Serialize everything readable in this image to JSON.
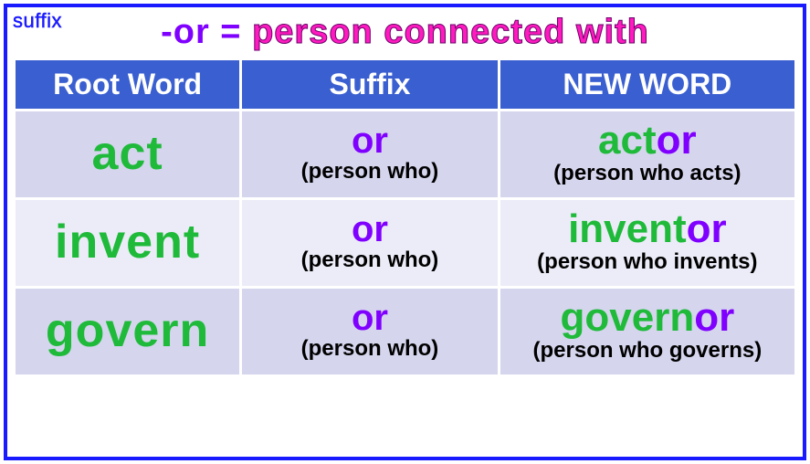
{
  "corner_label": "suffix",
  "title": {
    "prefix": "-or = ",
    "main": "person connected with"
  },
  "columns": [
    "Root Word",
    "Suffix",
    "NEW WORD"
  ],
  "rows": [
    {
      "root": "act",
      "suffix": "or",
      "suffix_meaning": "(person who)",
      "new_root": "act",
      "new_suffix": "or",
      "definition": "(person who acts)"
    },
    {
      "root": "invent",
      "suffix": "or",
      "suffix_meaning": "(person who)",
      "new_root": "invent",
      "new_suffix": "or",
      "definition": "(person who invents)"
    },
    {
      "root": "govern",
      "suffix": "or",
      "suffix_meaning": "(person who)",
      "new_root": "govern",
      "new_suffix": "or",
      "definition": "(person who governs)"
    }
  ],
  "colors": {
    "frame_border": "#1a1aff",
    "header_bg": "#3a5fd0",
    "row_odd": "#d5d5ee",
    "row_even": "#ececf8",
    "root_color": "#1fba3a",
    "suffix_color": "#8000ff",
    "title_main": "#ff1abf",
    "text": "#000000"
  },
  "fonts": {
    "title_size": 38,
    "header_size": 32,
    "root_size": 52,
    "suffix_size": 40,
    "meaning_size": 24,
    "newword_size": 44
  }
}
